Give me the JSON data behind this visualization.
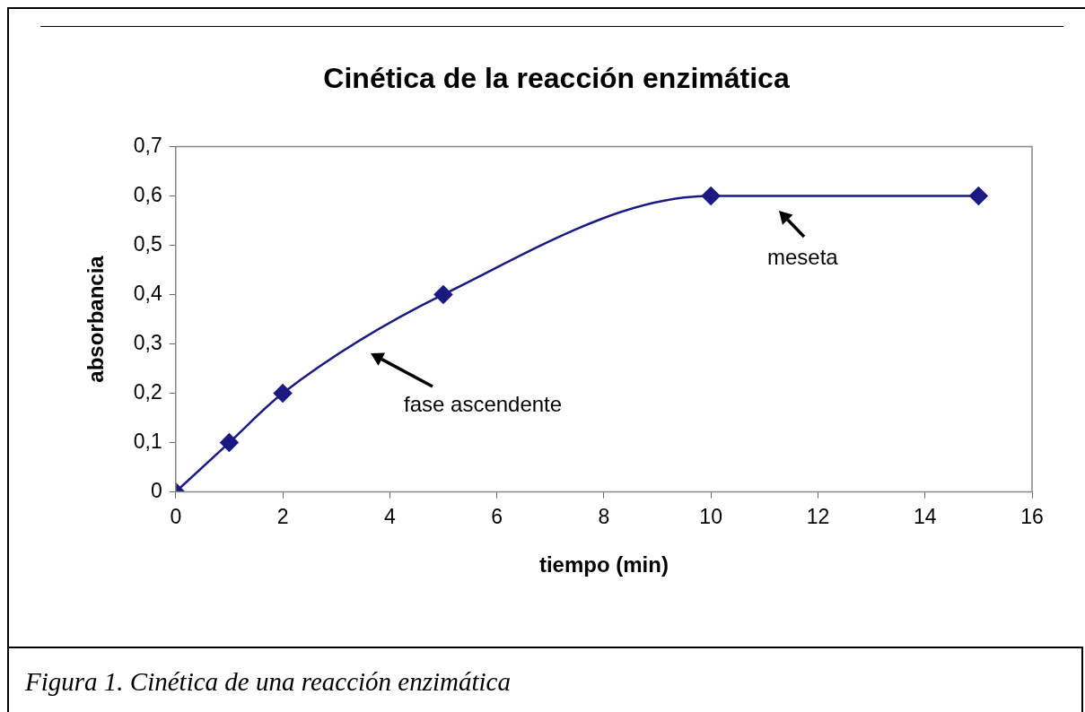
{
  "chart_data": {
    "type": "line",
    "title": "Cinética de la reacción enzimática",
    "xlabel": "tiempo (min)",
    "ylabel": "absorbancia",
    "x": [
      0,
      1,
      2,
      5,
      10,
      15
    ],
    "series": [
      {
        "color": "#1a1a80",
        "values": [
          0,
          0.1,
          0.2,
          0.4,
          0.6,
          0.6
        ]
      }
    ],
    "xlim": [
      0,
      16
    ],
    "xticks": [
      0,
      2,
      4,
      6,
      8,
      10,
      12,
      14,
      16
    ],
    "ylim": [
      0,
      0.7
    ],
    "yticks": [
      0,
      {
        "value": 0.1,
        "label": "0,1"
      },
      {
        "value": 0.2,
        "label": "0,2"
      },
      {
        "value": 0.3,
        "label": "0,3"
      },
      {
        "value": 0.4,
        "label": "0,4"
      },
      {
        "value": 0.5,
        "label": "0,5"
      },
      {
        "value": 0.6,
        "label": "0,6"
      },
      {
        "value": 0.7,
        "label": "0,7"
      }
    ],
    "grid": false,
    "legend": false,
    "marker": "diamond",
    "line_style": "solid",
    "annotations": [
      "fase ascendente",
      "meseta",
      "Figura 1. Cinética de una reacción enzimática"
    ]
  }
}
